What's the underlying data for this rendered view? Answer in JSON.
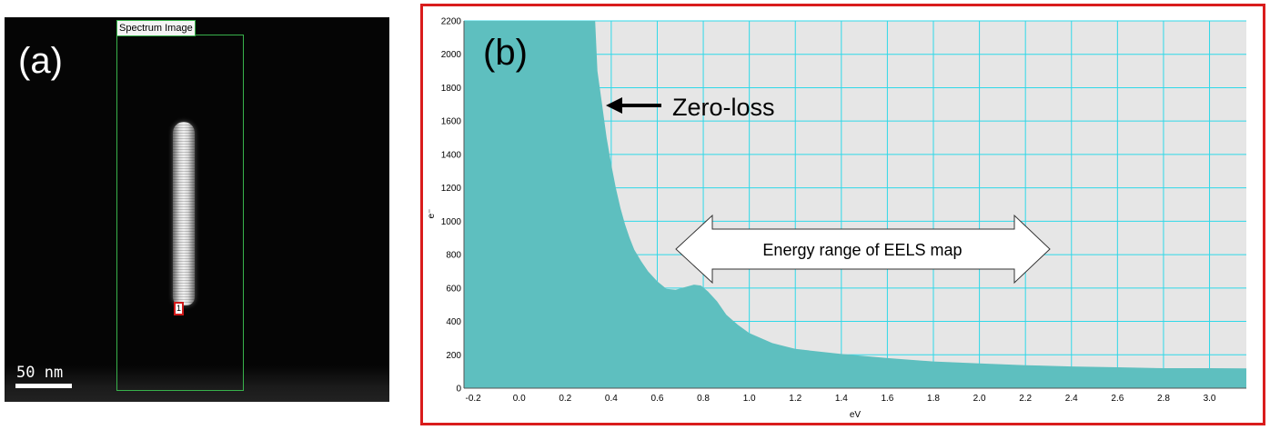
{
  "panel_a": {
    "label": "(a)",
    "roi_label": "Spectrum Image",
    "marker_label": "1",
    "scale_bar": "50 nm"
  },
  "panel_b": {
    "label": "(b)",
    "annotation_zero_loss": "Zero-loss",
    "annotation_range": "Energy range of EELS map",
    "colors": {
      "fill": "#5ebfbf",
      "grid": "#2fd8e8",
      "plot_bg": "#e6e6e6",
      "frame": "#d91c1c"
    }
  },
  "chart_data": {
    "type": "area",
    "title": "",
    "xlabel": "eV",
    "ylabel": "e⁻",
    "xlim": [
      -0.24,
      3.16
    ],
    "ylim": [
      0,
      2200
    ],
    "xticks": [
      -0.2,
      0.0,
      0.2,
      0.4,
      0.6,
      0.8,
      1.0,
      1.2,
      1.4,
      1.6,
      1.8,
      2.0,
      2.2,
      2.4,
      2.6,
      2.8,
      3.0
    ],
    "yticks": [
      0,
      200,
      400,
      600,
      800,
      1000,
      1200,
      1400,
      1600,
      1800,
      2000,
      2200
    ],
    "grid": true,
    "x": [
      -0.24,
      0.33,
      0.34,
      0.36,
      0.38,
      0.4,
      0.42,
      0.44,
      0.46,
      0.48,
      0.5,
      0.53,
      0.56,
      0.6,
      0.64,
      0.68,
      0.72,
      0.76,
      0.79,
      0.82,
      0.86,
      0.9,
      0.95,
      1.0,
      1.1,
      1.2,
      1.4,
      1.6,
      1.8,
      2.0,
      2.2,
      2.4,
      2.6,
      2.8,
      3.0,
      3.16
    ],
    "y": [
      2200,
      2200,
      1900,
      1700,
      1500,
      1340,
      1200,
      1080,
      980,
      900,
      830,
      760,
      700,
      640,
      595,
      590,
      605,
      620,
      615,
      580,
      520,
      440,
      380,
      330,
      270,
      235,
      205,
      180,
      160,
      148,
      138,
      130,
      125,
      120,
      120,
      118
    ]
  }
}
